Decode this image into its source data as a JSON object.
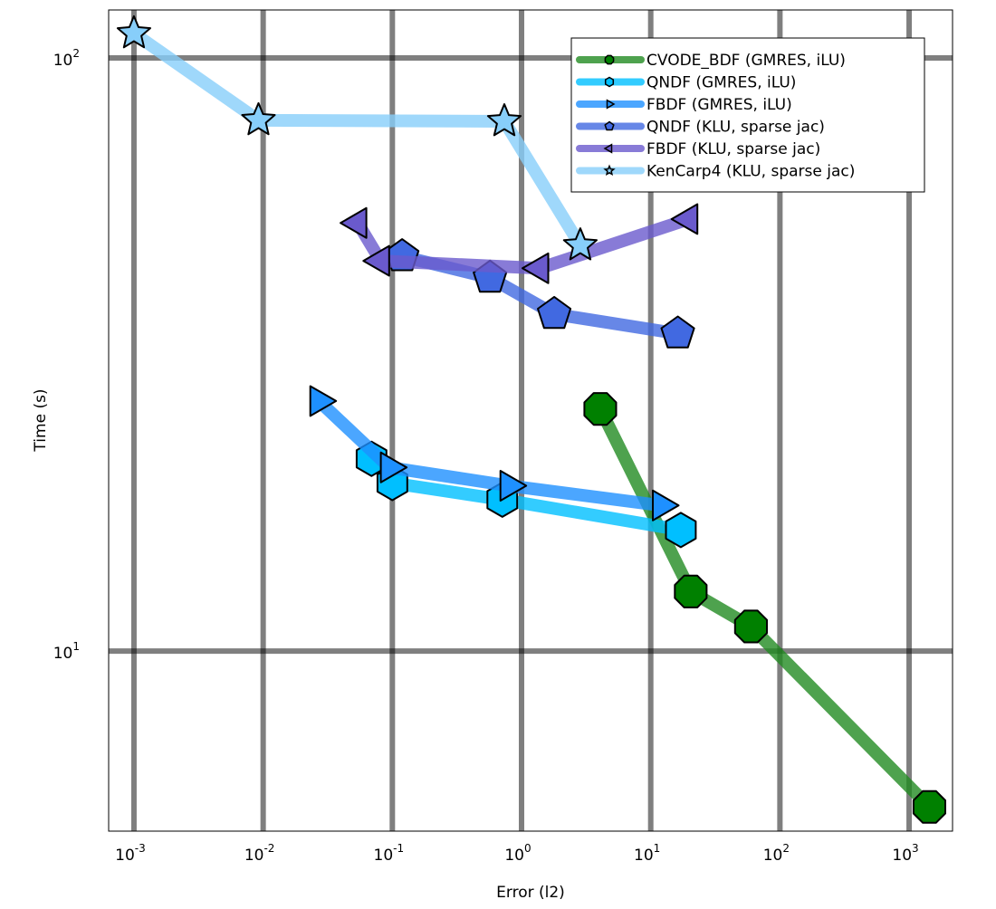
{
  "chart_data": {
    "type": "line",
    "title": "",
    "xlabel": "Error (l2)",
    "ylabel": "Time (s)",
    "xscale": "log",
    "yscale": "log",
    "xlim": [
      0.000637,
      2168
    ],
    "ylim": [
      4.97,
      120.5
    ],
    "x_ticks": [
      0.001,
      0.01,
      0.1,
      1,
      10,
      100,
      1000
    ],
    "x_tick_labels": [
      [
        "10",
        "-3"
      ],
      [
        "10",
        "-2"
      ],
      [
        "10",
        "-1"
      ],
      [
        "10",
        "0"
      ],
      [
        "10",
        "1"
      ],
      [
        "10",
        "2"
      ],
      [
        "10",
        "3"
      ]
    ],
    "y_ticks": [
      10,
      100
    ],
    "y_tick_labels": [
      [
        "10",
        "1"
      ],
      [
        "10",
        "2"
      ]
    ],
    "grid": true,
    "legend_position": "top-right",
    "series": [
      {
        "name": "CVODE_BDF (GMRES, iLU)",
        "color": "#008000",
        "line_color": "#228b22",
        "marker": "octagon",
        "x": [
          4.07,
          20.4,
          59.7,
          1436
        ],
        "y": [
          25.6,
          12.6,
          11.0,
          5.46
        ]
      },
      {
        "name": "QNDF (GMRES, iLU)",
        "color": "#00bfff",
        "line_color": "#00bfff",
        "marker": "hexagon",
        "x": [
          0.069,
          0.1,
          0.71,
          17.1
        ],
        "y": [
          21.1,
          19.2,
          18.0,
          16.0
        ]
      },
      {
        "name": "FBDF (GMRES, iLU)",
        "color": "#1e90ff",
        "line_color": "#1e90ff",
        "marker": "triangle-right",
        "x": [
          0.027,
          0.095,
          0.8,
          12.1
        ],
        "y": [
          26.4,
          20.4,
          19.0,
          17.6
        ]
      },
      {
        "name": "QNDF (KLU, sparse jac)",
        "color": "#4169e1",
        "line_color": "#4169e1",
        "marker": "pentagon",
        "x": [
          0.119,
          0.57,
          1.79,
          16.2
        ],
        "y": [
          46.3,
          42.6,
          37.0,
          34.3
        ]
      },
      {
        "name": "FBDF (KLU, sparse jac)",
        "color": "#6a5acd",
        "line_color": "#6a5acd",
        "marker": "triangle-left",
        "x": [
          0.054,
          0.081,
          1.38,
          19.7
        ],
        "y": [
          52.7,
          45.5,
          44.2,
          53.5
        ]
      },
      {
        "name": "KenCarp4 (KLU, sparse jac)",
        "color": "#87cefa",
        "line_color": "#87cefa",
        "marker": "star",
        "x": [
          0.001,
          0.0092,
          0.736,
          2.85
        ],
        "y": [
          110,
          78.5,
          78.2,
          48.3
        ]
      }
    ]
  }
}
